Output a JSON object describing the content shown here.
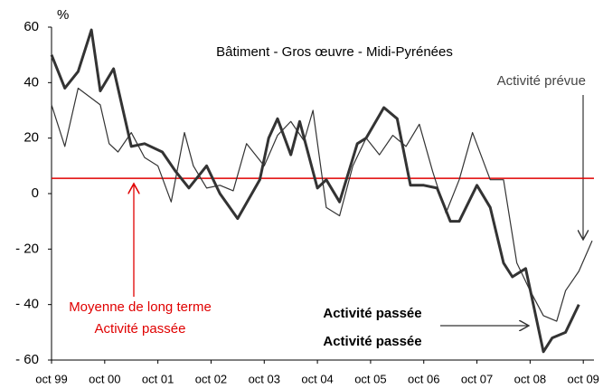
{
  "chart_data": {
    "type": "line",
    "title": "Bâtiment - Gros œuvre - Midi-Pyrénées",
    "y_unit": "%",
    "series": [
      {
        "name": "Activité passée",
        "color": "#333333",
        "width": 3,
        "x": [
          0,
          3,
          6,
          9,
          11,
          14,
          18,
          21,
          25,
          28,
          31,
          35,
          38,
          42,
          47,
          49,
          51,
          54,
          56,
          60,
          62,
          65,
          69,
          71,
          75,
          78,
          81,
          84,
          87,
          90,
          92,
          96,
          99,
          102,
          104,
          107,
          111,
          113,
          116,
          119
        ],
        "values": [
          50,
          38,
          44,
          59,
          37,
          45,
          17,
          18,
          15,
          8,
          2,
          10,
          0,
          -9,
          5,
          20,
          27,
          14,
          26,
          2,
          5,
          -3,
          18,
          20,
          31,
          27,
          3,
          3,
          2,
          -10,
          -10,
          3,
          -5,
          -25,
          -30,
          -27,
          -57,
          -52,
          -50,
          -40
        ]
      },
      {
        "name": "Activité prévue",
        "color": "#333333",
        "width": 1.2,
        "x": [
          0,
          3,
          6,
          11,
          13,
          15,
          18,
          21,
          24,
          27,
          30,
          32,
          35,
          38,
          41,
          44,
          48,
          51,
          54,
          57,
          59,
          62,
          65,
          68,
          71,
          74,
          77,
          80,
          83,
          86,
          89,
          92,
          95,
          99,
          102,
          105,
          108,
          111,
          114,
          116,
          119,
          122
        ],
        "values": [
          32,
          17,
          38,
          32,
          18,
          15,
          22,
          13,
          10,
          -3,
          22,
          10,
          2,
          3,
          1,
          18,
          10,
          21,
          26,
          19,
          30,
          -5,
          -8,
          10,
          20,
          14,
          21,
          17,
          25,
          8,
          -7,
          5,
          22,
          5,
          5,
          -25,
          -35,
          -44,
          -46,
          -35,
          -28,
          -17
        ]
      }
    ],
    "mean_line": {
      "value": 5.5,
      "color": "#e00000",
      "label": "Moyenne de long terme"
    },
    "annotations": [
      "Activité prévue",
      "Activité passée",
      "Activité passée"
    ],
    "xlim": [
      0,
      122
    ],
    "xticks": [
      {
        "value": 0,
        "label": "oct 99"
      },
      {
        "value": 12,
        "label": "oct 00"
      },
      {
        "value": 24,
        "label": "oct 01"
      },
      {
        "value": 36,
        "label": "oct 02"
      },
      {
        "value": 48,
        "label": "oct 03"
      },
      {
        "value": 60,
        "label": "oct 04"
      },
      {
        "value": 72,
        "label": "oct 05"
      },
      {
        "value": 84,
        "label": "oct 06"
      },
      {
        "value": 96,
        "label": "oct 07"
      },
      {
        "value": 108,
        "label": "oct 08"
      },
      {
        "value": 120,
        "label": "oct 09"
      }
    ],
    "ylim": [
      -60,
      60
    ],
    "yticks": [
      60,
      40,
      20,
      0,
      {
        "value": -20,
        "label": "- 20"
      },
      {
        "value": -40,
        "label": "- 40"
      },
      {
        "value": -60,
        "label": "- 60"
      }
    ]
  }
}
